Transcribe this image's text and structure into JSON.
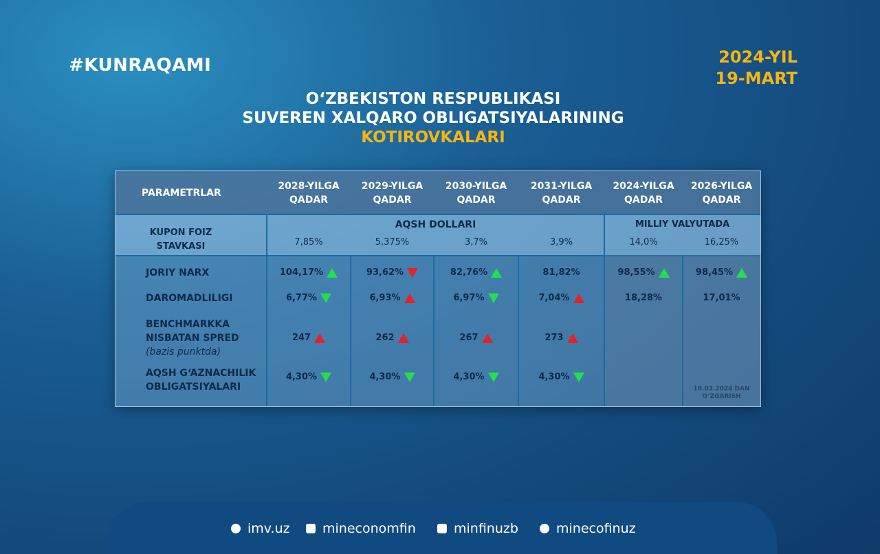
{
  "hashtag": "#KUNRAQAMI",
  "date": [
    "2024-YIL",
    "19-MART"
  ],
  "title": [
    "O‘ZBEKISTON RESPUBLIKASI",
    "SUVEREN XALQARO OBLIGATSIYALARINING"
  ],
  "title_highlight": "KOTIROVKALARI",
  "table": {
    "param_header": "PARAMETRLAR",
    "columns": [
      [
        "2028-YILGA",
        "QADAR"
      ],
      [
        "2029-YILGA",
        "QADAR"
      ],
      [
        "2030-YILGA",
        "QADAR"
      ],
      [
        "2031-YILGA",
        "QADAR"
      ],
      [
        "2024-YILGA",
        "QADAR"
      ],
      [
        "2026-YILGA",
        "QADAR"
      ]
    ],
    "groups": [
      "AQSH DOLLARI",
      "MILLIY VALYUTADA"
    ],
    "coupon": {
      "label": [
        "KUPON FOIZ",
        "STAVKASI"
      ],
      "values": [
        "7,85%",
        "5,375%",
        "3,7%",
        "3,9%",
        "14,0%",
        "16,25%"
      ]
    },
    "rows": [
      {
        "label": [
          "JORIY NARX"
        ],
        "values": [
          "104,17%",
          "93,62%",
          "82,76%",
          "81,82%",
          "98,55%",
          "98,45%"
        ],
        "arrows": [
          {
            "dir": "up",
            "color": "#22e04a"
          },
          {
            "dir": "down",
            "color": "#e8202a"
          },
          {
            "dir": "up",
            "color": "#22e04a"
          },
          null,
          {
            "dir": "up",
            "color": "#22e04a"
          },
          {
            "dir": "up",
            "color": "#22e04a"
          }
        ]
      },
      {
        "label": [
          "DAROMADLILIGI"
        ],
        "values": [
          "6,77%",
          "6,93%",
          "6,97%",
          "7,04%",
          "18,28%",
          "17,01%"
        ],
        "arrows": [
          {
            "dir": "down",
            "color": "#22e04a"
          },
          {
            "dir": "up",
            "color": "#e8202a"
          },
          {
            "dir": "down",
            "color": "#22e04a"
          },
          {
            "dir": "up",
            "color": "#e8202a"
          },
          null,
          null
        ]
      },
      {
        "label": [
          "BENCHMARKKA",
          "NISBATAN SPRED"
        ],
        "note": "(bazis punktda)",
        "values": [
          "247",
          "262",
          "267",
          "273",
          null,
          null
        ],
        "arrows": [
          {
            "dir": "up",
            "color": "#e8202a"
          },
          {
            "dir": "up",
            "color": "#e8202a"
          },
          {
            "dir": "up",
            "color": "#e8202a"
          },
          {
            "dir": "up",
            "color": "#e8202a"
          },
          null,
          null
        ]
      },
      {
        "label": [
          "AQSH G‘AZNACHILIK",
          "OBLIGATSIYALARI"
        ],
        "values": [
          "4,30%",
          "4,30%",
          "4,30%",
          "4,30%",
          null,
          null
        ],
        "arrows": [
          {
            "dir": "down",
            "color": "#22e04a"
          },
          {
            "dir": "down",
            "color": "#22e04a"
          },
          {
            "dir": "down",
            "color": "#22e04a"
          },
          {
            "dir": "down",
            "color": "#22e04a"
          },
          null,
          null
        ]
      }
    ],
    "change_note": [
      "18.03.2024 DAN",
      "O‘ZGARISH"
    ]
  },
  "footer": [
    "imv.uz",
    "mineconomfin",
    "minfinuzb",
    "minecofinuz"
  ]
}
